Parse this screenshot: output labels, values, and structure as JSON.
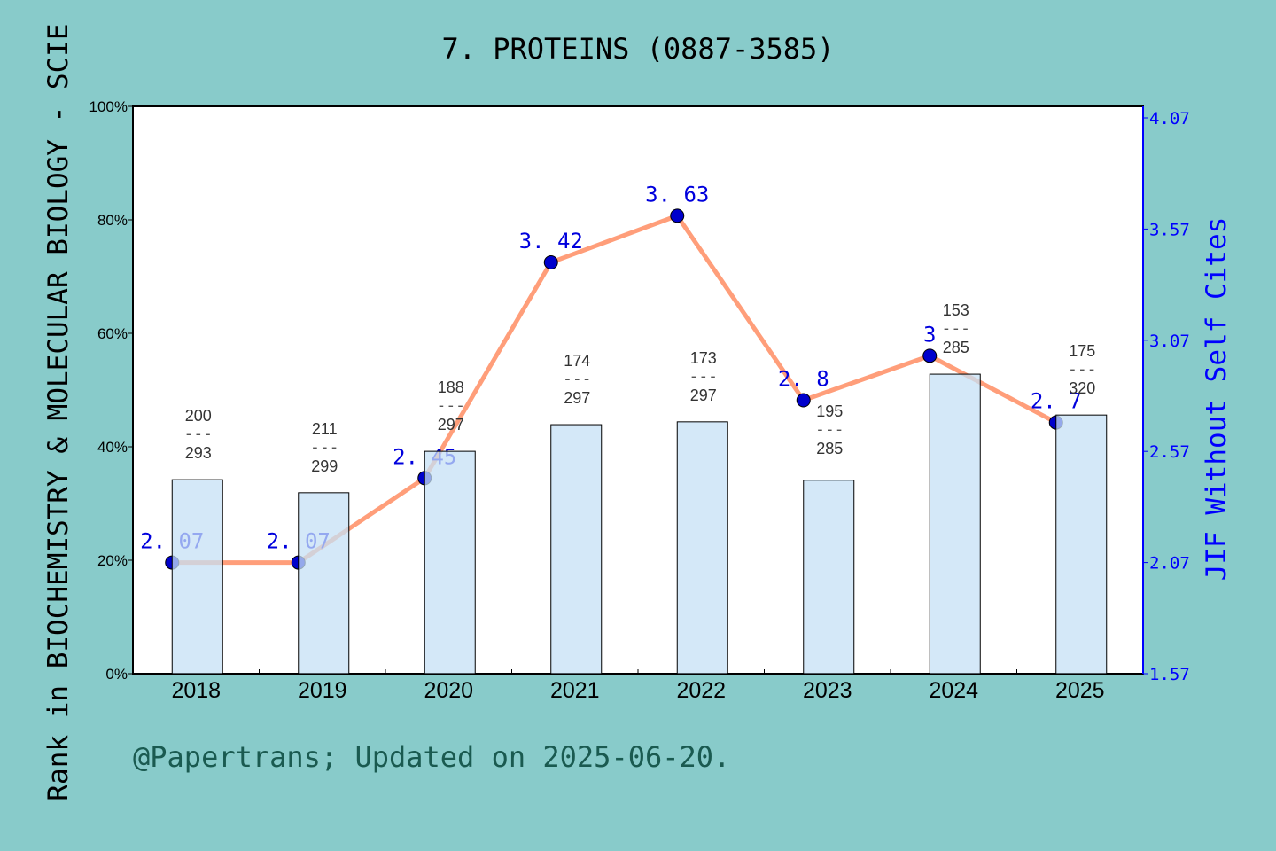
{
  "chart_data": {
    "type": "bar+line",
    "title": "7. PROTEINS (0887-3585)",
    "ylabel": "Rank in BIOCHEMISTRY & MOLECULAR BIOLOGY - SCIE",
    "y2label": "JIF Without Self Cites",
    "categories": [
      "2018",
      "2019",
      "2020",
      "2021",
      "2022",
      "2023",
      "2024",
      "2025"
    ],
    "ylim": [
      0,
      100
    ],
    "yticks": [
      "0%",
      "20%",
      "40%",
      "60%",
      "80%",
      "100%"
    ],
    "y2lim": [
      1.57,
      4.07
    ],
    "y2ticks": [
      "1.57",
      "2.07",
      "2.57",
      "3.07",
      "3.57",
      "4.07"
    ],
    "bar_series": {
      "values": [
        34.2,
        31.9,
        39.2,
        43.9,
        44.4,
        34.1,
        52.8,
        45.6
      ],
      "ranks": [
        "200",
        "211",
        "188",
        "174",
        "173",
        "195",
        "153",
        "175"
      ],
      "totals": [
        "293",
        "299",
        "297",
        "297",
        "297",
        "285",
        "285",
        "320"
      ],
      "color": "#c5e0f5"
    },
    "line_series": {
      "values": [
        2.07,
        2.07,
        2.45,
        3.42,
        3.63,
        2.8,
        3,
        2.7
      ],
      "labels": [
        "2. 07",
        "2. 07",
        "2. 45",
        "3. 42",
        "3. 63",
        "2. 8",
        "3",
        "2. 7"
      ],
      "color": "#ff9e7a",
      "marker_color": "#0000cc"
    },
    "grid": false
  },
  "footer": "@Papertrans; Updated on 2025-06-20."
}
